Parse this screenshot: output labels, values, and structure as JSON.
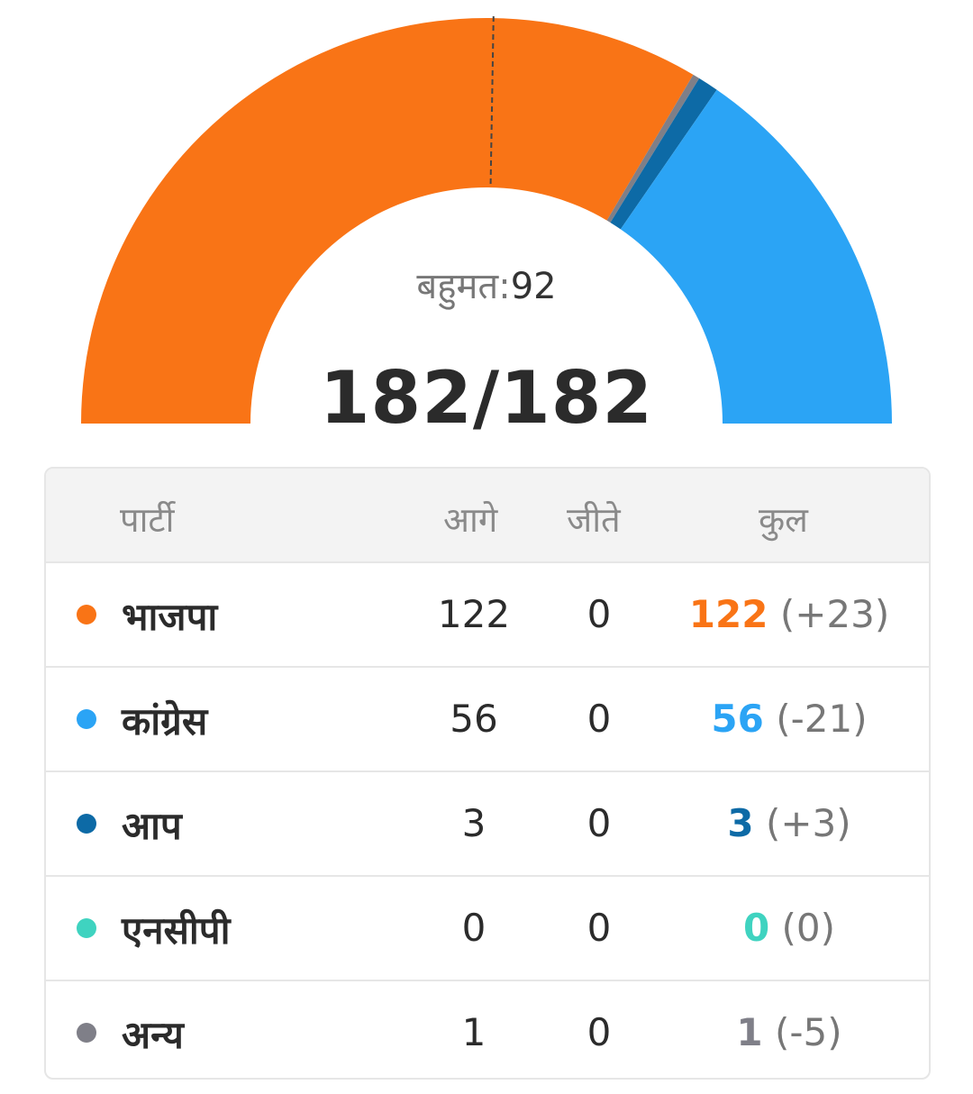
{
  "colors": {
    "bjp": "#f97416",
    "congress": "#2ba4f5",
    "aap": "#0d6aa6",
    "ncp": "#3fd3c0",
    "others": "#7f7f88",
    "majority_line": "#444444"
  },
  "gauge": {
    "majority_label": "बहुमत:",
    "majority_value": "92",
    "total_text": "182/182"
  },
  "table": {
    "headers": {
      "party": "पार्टी",
      "leading": "आगे",
      "won": "जीते",
      "total": "कुल"
    },
    "rows": [
      {
        "party": "भाजपा",
        "leading": "122",
        "won": "0",
        "total": "122",
        "change": "(+23)",
        "color": "#f97416"
      },
      {
        "party": "कांग्रेस",
        "leading": "56",
        "won": "0",
        "total": "56",
        "change": "(-21)",
        "color": "#2ba4f5"
      },
      {
        "party": "आप",
        "leading": "3",
        "won": "0",
        "total": "3",
        "change": "(+3)",
        "color": "#0d6aa6"
      },
      {
        "party": "एनसीपी",
        "leading": "0",
        "won": "0",
        "total": "0",
        "change": "(0)",
        "color": "#3fd3c0"
      },
      {
        "party": "अन्य",
        "leading": "1",
        "won": "0",
        "total": "1",
        "change": "(-5)",
        "color": "#7f7f88"
      }
    ]
  },
  "chart_data": {
    "type": "pie",
    "variant": "half-donut",
    "total_seats": 182,
    "majority": 92,
    "segments_order": [
      "BJP",
      "Others",
      "AAP",
      "Congress"
    ],
    "segments": [
      {
        "party": "भाजपा",
        "seats": 122,
        "color": "#f97416"
      },
      {
        "party": "अन्य",
        "seats": 1,
        "color": "#7f7f88"
      },
      {
        "party": "आप",
        "seats": 3,
        "color": "#0d6aa6"
      },
      {
        "party": "कांग्रेस",
        "seats": 56,
        "color": "#2ba4f5"
      }
    ]
  }
}
